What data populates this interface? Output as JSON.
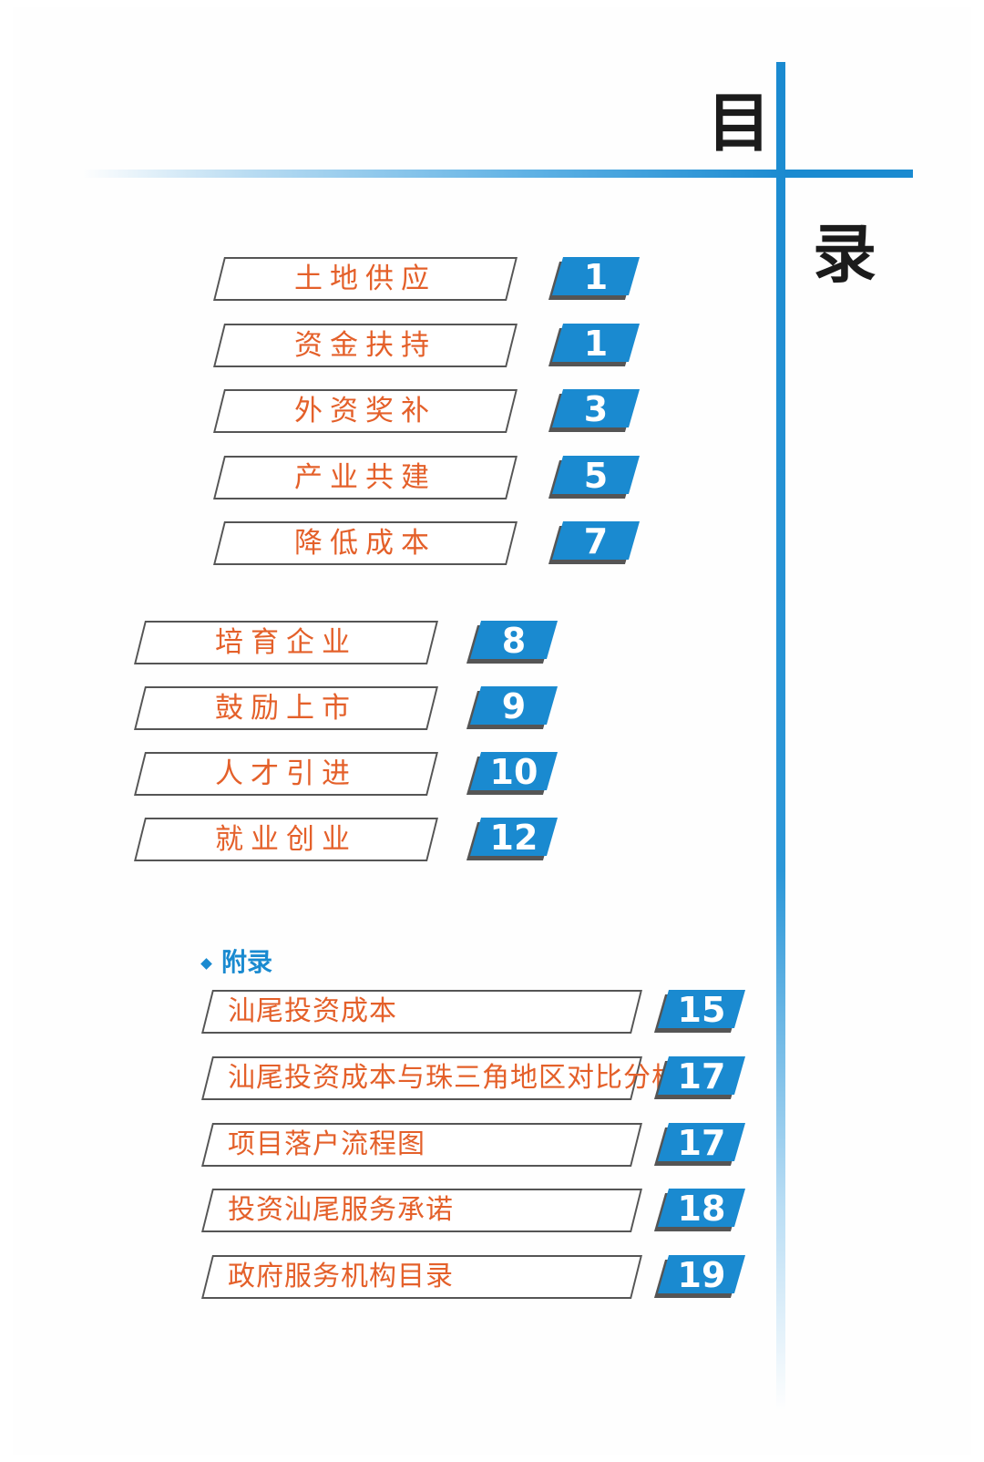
{
  "title": {
    "char1": "目",
    "char2": "录"
  },
  "colors": {
    "accent": "#1a8ad0",
    "label": "#e4602a",
    "outline": "#555555"
  },
  "group1": [
    {
      "label": "土地供应",
      "page": "1"
    },
    {
      "label": "资金扶持",
      "page": "1"
    },
    {
      "label": "外资奖补",
      "page": "3"
    },
    {
      "label": "产业共建",
      "page": "5"
    },
    {
      "label": "降低成本",
      "page": "7"
    }
  ],
  "group2": [
    {
      "label": "培育企业",
      "page": "8"
    },
    {
      "label": "鼓励上市",
      "page": "9"
    },
    {
      "label": "人才引进",
      "page": "10"
    },
    {
      "label": "就业创业",
      "page": "12"
    }
  ],
  "appendix": {
    "heading": "附录",
    "items": [
      {
        "label": "汕尾投资成本",
        "page": "15"
      },
      {
        "label": "汕尾投资成本与珠三角地区对比分析",
        "page": "17"
      },
      {
        "label": "项目落户流程图",
        "page": "17"
      },
      {
        "label": "投资汕尾服务承诺",
        "page": "18"
      },
      {
        "label": "政府服务机构目录",
        "page": "19"
      }
    ]
  }
}
